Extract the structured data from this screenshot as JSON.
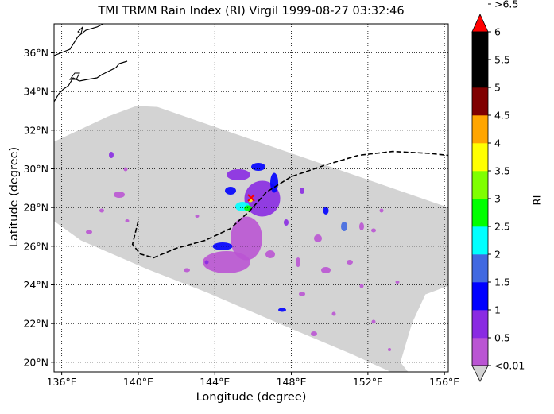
{
  "title": "TMI TRMM Rain Index (RI) Virgil 1999-08-27 03:32:46",
  "xlabel": "Longitude (degree)",
  "ylabel": "Latitude (degree)",
  "colorbar_label": "RI",
  "map": {
    "lon_range": [
      135.6,
      156.2
    ],
    "lat_range": [
      19.5,
      37.5
    ],
    "lon_ticks": [
      {
        "value": 136,
        "label": "136°E"
      },
      {
        "value": 140,
        "label": "140°E"
      },
      {
        "value": 144,
        "label": "144°E"
      },
      {
        "value": 148,
        "label": "148°E"
      },
      {
        "value": 152,
        "label": "152°E"
      },
      {
        "value": 156,
        "label": "156°E"
      }
    ],
    "lat_ticks": [
      {
        "value": 20,
        "label": "20°N"
      },
      {
        "value": 22,
        "label": "22°N"
      },
      {
        "value": 24,
        "label": "24°N"
      },
      {
        "value": 26,
        "label": "26°N"
      },
      {
        "value": 28,
        "label": "28°N"
      },
      {
        "value": 30,
        "label": "30°N"
      },
      {
        "value": 32,
        "label": "32°N"
      },
      {
        "value": 34,
        "label": "34°N"
      },
      {
        "value": 36,
        "label": "36°N"
      }
    ],
    "grid": true,
    "swath_color": "#d3d3d3",
    "storm_center": {
      "lon": 145.9,
      "lat": 28.5,
      "color": "#ff0000"
    },
    "track": [
      [
        140.0,
        27.3
      ],
      [
        139.8,
        26.5
      ],
      [
        139.7,
        26.1
      ],
      [
        140.1,
        25.6
      ],
      [
        140.8,
        25.4
      ],
      [
        142.0,
        25.9
      ],
      [
        143.5,
        26.3
      ],
      [
        144.8,
        26.9
      ],
      [
        145.8,
        27.8
      ],
      [
        146.7,
        28.8
      ],
      [
        148.0,
        29.6
      ],
      [
        149.8,
        30.2
      ],
      [
        151.5,
        30.7
      ],
      [
        153.3,
        30.9
      ],
      [
        155.2,
        30.8
      ],
      [
        156.2,
        30.7
      ]
    ]
  },
  "colorbar": {
    "levels": [
      {
        "label": "<0.01",
        "color": "#d3d3d3"
      },
      {
        "label": "0.5",
        "color": "#ba55d3"
      },
      {
        "label": "1",
        "color": "#8a2be2"
      },
      {
        "label": "1.5",
        "color": "#0000ff"
      },
      {
        "label": "2",
        "color": "#4169e1"
      },
      {
        "label": "2.5",
        "color": "#00ffff"
      },
      {
        "label": "3",
        "color": "#00ff00"
      },
      {
        "label": "3.5",
        "color": "#7fff00"
      },
      {
        "label": "4",
        "color": "#ffff00"
      },
      {
        "label": "4.5",
        "color": "#ffa500"
      },
      {
        "label": "5",
        "color": "#800000"
      },
      {
        "label": "5.5",
        "color": "#000000"
      },
      {
        "label": "6",
        "color": "#000000"
      },
      {
        "label": ">6.5",
        "color": "#ff0000"
      }
    ]
  }
}
